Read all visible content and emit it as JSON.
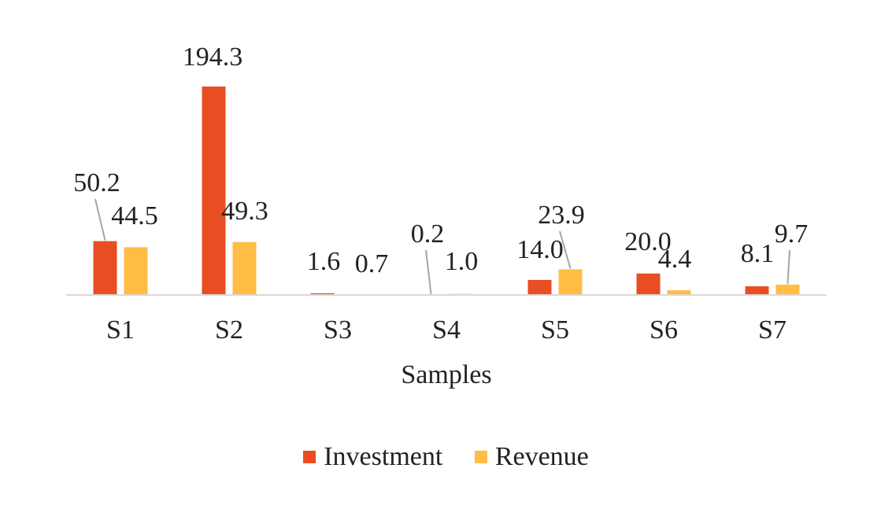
{
  "chart_data": {
    "type": "bar",
    "categories": [
      "S1",
      "S2",
      "S3",
      "S4",
      "S5",
      "S6",
      "S7"
    ],
    "series": [
      {
        "name": "Investment",
        "values": [
          50.2,
          194.3,
          1.6,
          0.2,
          14.0,
          20.0,
          8.1
        ],
        "color": "#E84E22",
        "labels": [
          "50.2",
          "194.3",
          "1.6",
          "0.2",
          "14.0",
          "20.0",
          "8.1"
        ]
      },
      {
        "name": "Revenue",
        "values": [
          44.5,
          49.3,
          0.7,
          1.0,
          23.9,
          4.4,
          9.7
        ],
        "color": "#FFBD45",
        "labels": [
          "44.5",
          "49.3",
          "0.7",
          "1.0",
          "23.9",
          "4.4",
          "9.7"
        ]
      }
    ],
    "xlabel": "Samples",
    "ylabel": "",
    "ylim": [
      0,
      194.3
    ],
    "legend_position": "bottom",
    "grid": false,
    "axis_color": "#D9D9D9",
    "leader_line_color": "#A6A6A6"
  }
}
